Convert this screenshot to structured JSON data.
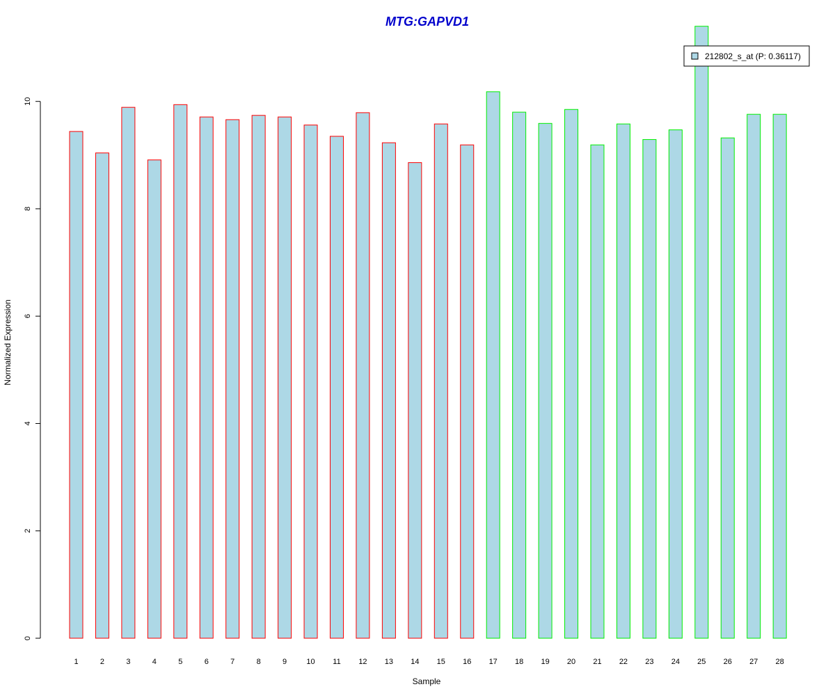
{
  "chart_data": {
    "type": "bar",
    "title": "MTG:GAPVD1",
    "xlabel": "Sample",
    "ylabel": "Normalized Expression",
    "ylim": [
      0,
      11.5
    ],
    "yticks": [
      0,
      2,
      4,
      6,
      8,
      10
    ],
    "categories": [
      "1",
      "2",
      "3",
      "4",
      "5",
      "6",
      "7",
      "8",
      "9",
      "10",
      "11",
      "12",
      "13",
      "14",
      "15",
      "16",
      "17",
      "18",
      "19",
      "20",
      "21",
      "22",
      "23",
      "24",
      "25",
      "26",
      "27",
      "28"
    ],
    "values": [
      9.44,
      9.04,
      9.89,
      8.91,
      9.94,
      9.71,
      9.66,
      9.74,
      9.71,
      9.56,
      9.35,
      9.79,
      9.23,
      8.86,
      9.58,
      9.19,
      10.18,
      9.8,
      9.59,
      9.85,
      9.19,
      9.58,
      9.29,
      9.47,
      11.4,
      9.32,
      9.76,
      9.76
    ],
    "groups": [
      {
        "count": 16,
        "border_color": "#ff0000"
      },
      {
        "count": 12,
        "border_color": "#00ee00"
      }
    ],
    "bar_fill": "#add8e6",
    "title_color": "#0000cc",
    "grid": false,
    "legend": {
      "position": "top-right",
      "entries": [
        {
          "label": "212802_s_at (P: 0.36117)",
          "color": "#add8e6"
        }
      ]
    }
  }
}
